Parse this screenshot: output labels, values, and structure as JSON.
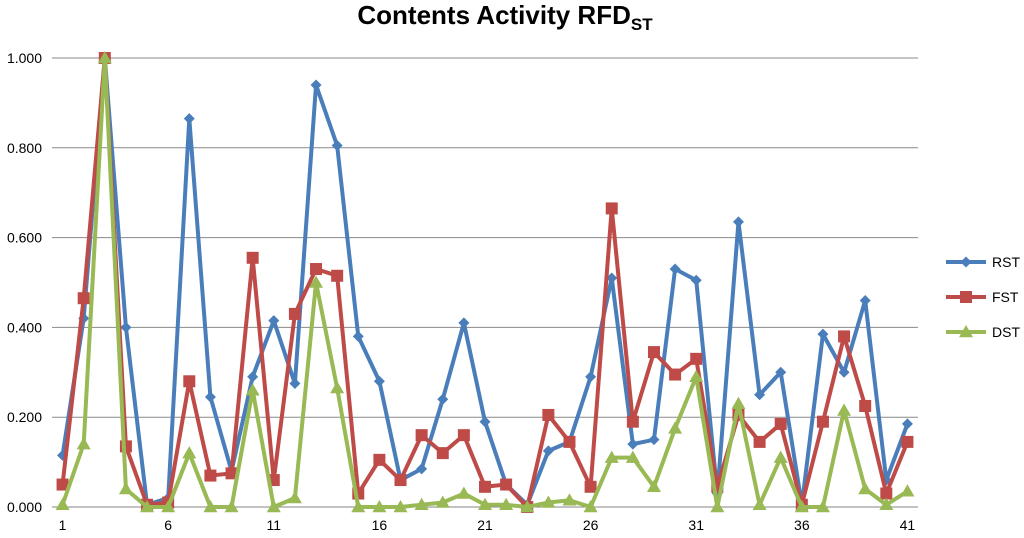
{
  "chart_data": {
    "type": "line",
    "title": "Contents Activity RFD",
    "title_subscript": "ST",
    "xlabel": "",
    "ylabel": "",
    "ylim": [
      0,
      1
    ],
    "y_ticks": [
      "0.000",
      "0.200",
      "0.400",
      "0.600",
      "0.800",
      "1.000"
    ],
    "x_ticks": [
      1,
      6,
      11,
      16,
      21,
      26,
      31,
      36,
      41
    ],
    "x": [
      1,
      2,
      3,
      4,
      5,
      6,
      7,
      8,
      9,
      10,
      11,
      12,
      13,
      14,
      15,
      16,
      17,
      18,
      19,
      20,
      21,
      22,
      23,
      24,
      25,
      26,
      27,
      28,
      29,
      30,
      31,
      32,
      33,
      34,
      35,
      36,
      37,
      38,
      39,
      40,
      41
    ],
    "grid": "horizontal",
    "legend_position": "right",
    "series": [
      {
        "name": "RST",
        "color": "#4a7ebb",
        "marker": "diamond",
        "values": [
          0.115,
          0.42,
          1.0,
          0.4,
          0.005,
          0.02,
          0.865,
          0.245,
          0.08,
          0.29,
          0.415,
          0.275,
          0.94,
          0.805,
          0.38,
          0.28,
          0.06,
          0.085,
          0.24,
          0.41,
          0.19,
          0.05,
          0.005,
          0.125,
          0.145,
          0.29,
          0.51,
          0.14,
          0.15,
          0.53,
          0.505,
          0.03,
          0.635,
          0.25,
          0.3,
          0.005,
          0.385,
          0.3,
          0.46,
          0.06,
          0.185
        ]
      },
      {
        "name": "FST",
        "color": "#be4b48",
        "marker": "square",
        "values": [
          0.05,
          0.465,
          1.0,
          0.135,
          0.005,
          0.01,
          0.28,
          0.07,
          0.075,
          0.555,
          0.06,
          0.43,
          0.53,
          0.515,
          0.03,
          0.105,
          0.06,
          0.16,
          0.12,
          0.16,
          0.045,
          0.05,
          0.0,
          0.205,
          0.145,
          0.045,
          0.665,
          0.19,
          0.345,
          0.295,
          0.33,
          0.045,
          0.205,
          0.145,
          0.185,
          0.005,
          0.19,
          0.38,
          0.225,
          0.03,
          0.145
        ]
      },
      {
        "name": "DST",
        "color": "#98b954",
        "marker": "triangle",
        "values": [
          0.005,
          0.14,
          1.0,
          0.04,
          0.0,
          0.0,
          0.12,
          0.0,
          0.0,
          0.26,
          0.0,
          0.02,
          0.5,
          0.265,
          0.0,
          0.0,
          0.0,
          0.005,
          0.01,
          0.03,
          0.005,
          0.005,
          0.0,
          0.01,
          0.015,
          0.0,
          0.11,
          0.11,
          0.045,
          0.175,
          0.29,
          0.0,
          0.23,
          0.005,
          0.11,
          0.0,
          0.0,
          0.215,
          0.04,
          0.005,
          0.035
        ]
      }
    ]
  }
}
